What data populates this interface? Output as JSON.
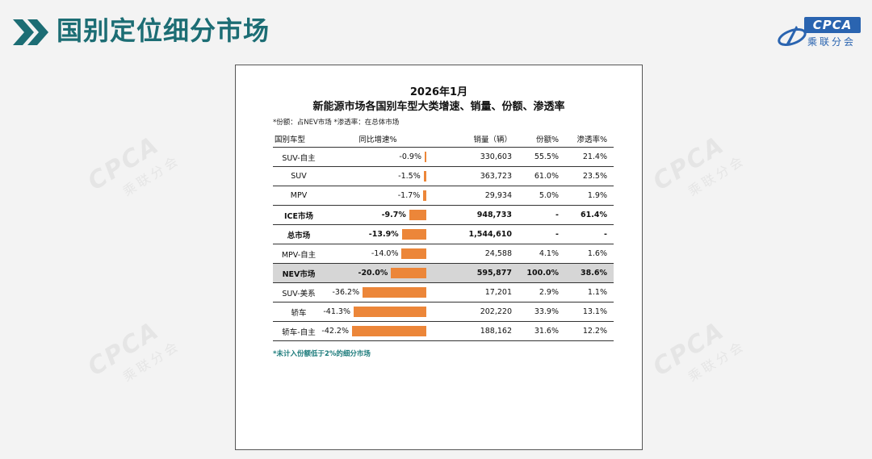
{
  "header": {
    "title": "国别定位细分市场",
    "logo": {
      "word": "CPCA",
      "sub": "乘联分会"
    }
  },
  "watermark": {
    "word": "CPCA",
    "sub": "乘联分会"
  },
  "chart_data": {
    "type": "table",
    "title": "2026年1月",
    "subtitle": "新能源市场各国别车型大类增速、销量、份额、渗透率",
    "note": "*份额：占NEV市场    *渗透率：在总体市场",
    "footnote": "*未计入份额低于2%的细分市场",
    "columns": [
      "国别车型",
      "同比增速%",
      "销量（辆）",
      "份额%",
      "渗透率%"
    ],
    "bar_color": "#ec8639",
    "highlight_color": "#d6d6d6",
    "rows": [
      {
        "type": "SUV-自主",
        "yoy": -0.9,
        "yoy_label": "-0.9%",
        "volume": "330,603",
        "share": "55.5%",
        "penetration": "21.4%",
        "bold": false,
        "highlight": false
      },
      {
        "type": "SUV",
        "yoy": -1.5,
        "yoy_label": "-1.5%",
        "volume": "363,723",
        "share": "61.0%",
        "penetration": "23.5%",
        "bold": false,
        "highlight": false
      },
      {
        "type": "MPV",
        "yoy": -1.7,
        "yoy_label": "-1.7%",
        "volume": "29,934",
        "share": "5.0%",
        "penetration": "1.9%",
        "bold": false,
        "highlight": false
      },
      {
        "type": "ICE市场",
        "yoy": -9.7,
        "yoy_label": "-9.7%",
        "volume": "948,733",
        "share": "-",
        "penetration": "61.4%",
        "bold": true,
        "highlight": false
      },
      {
        "type": "总市场",
        "yoy": -13.9,
        "yoy_label": "-13.9%",
        "volume": "1,544,610",
        "share": "-",
        "penetration": "-",
        "bold": true,
        "highlight": false
      },
      {
        "type": "MPV-自主",
        "yoy": -14.0,
        "yoy_label": "-14.0%",
        "volume": "24,588",
        "share": "4.1%",
        "penetration": "1.6%",
        "bold": false,
        "highlight": false
      },
      {
        "type": "NEV市场",
        "yoy": -20.0,
        "yoy_label": "-20.0%",
        "volume": "595,877",
        "share": "100.0%",
        "penetration": "38.6%",
        "bold": true,
        "highlight": true
      },
      {
        "type": "SUV-美系",
        "yoy": -36.2,
        "yoy_label": "-36.2%",
        "volume": "17,201",
        "share": "2.9%",
        "penetration": "1.1%",
        "bold": false,
        "highlight": false
      },
      {
        "type": "轿车",
        "yoy": -41.3,
        "yoy_label": "-41.3%",
        "volume": "202,220",
        "share": "33.9%",
        "penetration": "13.1%",
        "bold": false,
        "highlight": false
      },
      {
        "type": "轿车-自主",
        "yoy": -42.2,
        "yoy_label": "-42.2%",
        "volume": "188,162",
        "share": "31.6%",
        "penetration": "12.2%",
        "bold": false,
        "highlight": false
      }
    ]
  }
}
